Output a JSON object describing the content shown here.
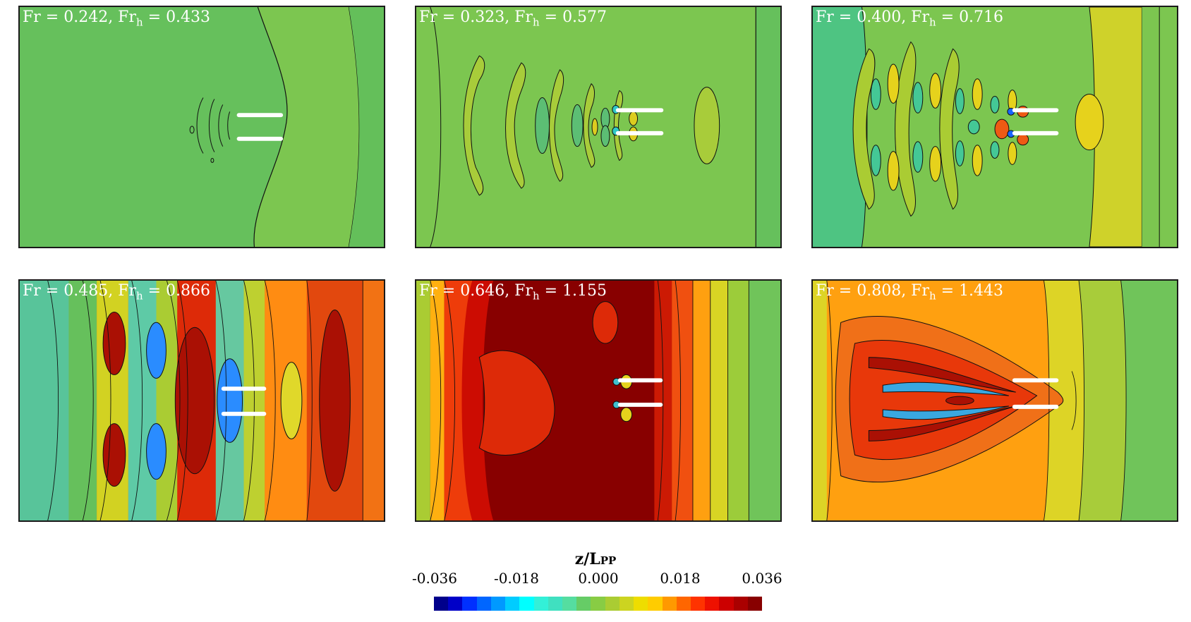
{
  "panels": [
    {
      "fr": "0.242",
      "frh": "0.433"
    },
    {
      "fr": "0.323",
      "frh": "0.577"
    },
    {
      "fr": "0.400",
      "frh": "0.716"
    },
    {
      "fr": "0.485",
      "frh": "0.866"
    },
    {
      "fr": "0.646",
      "frh": "1.155"
    },
    {
      "fr": "0.808",
      "frh": "1.443"
    }
  ],
  "colorbar": {
    "title_main": "z/L",
    "title_sub": "PP",
    "ticks": [
      "-0.036",
      "-0.018",
      "0.000",
      "0.018",
      "0.036"
    ],
    "colors": [
      "#00008b",
      "#0000c8",
      "#0030ff",
      "#0066ff",
      "#0099ff",
      "#00ccff",
      "#00ffff",
      "#33f0d8",
      "#40e0c0",
      "#55dda0",
      "#66cc66",
      "#88cc44",
      "#aacc33",
      "#ccd420",
      "#eedd00",
      "#ffcc00",
      "#ff9900",
      "#ff6600",
      "#ff3300",
      "#ee1100",
      "#cc0000",
      "#aa0000",
      "#880000"
    ]
  }
}
